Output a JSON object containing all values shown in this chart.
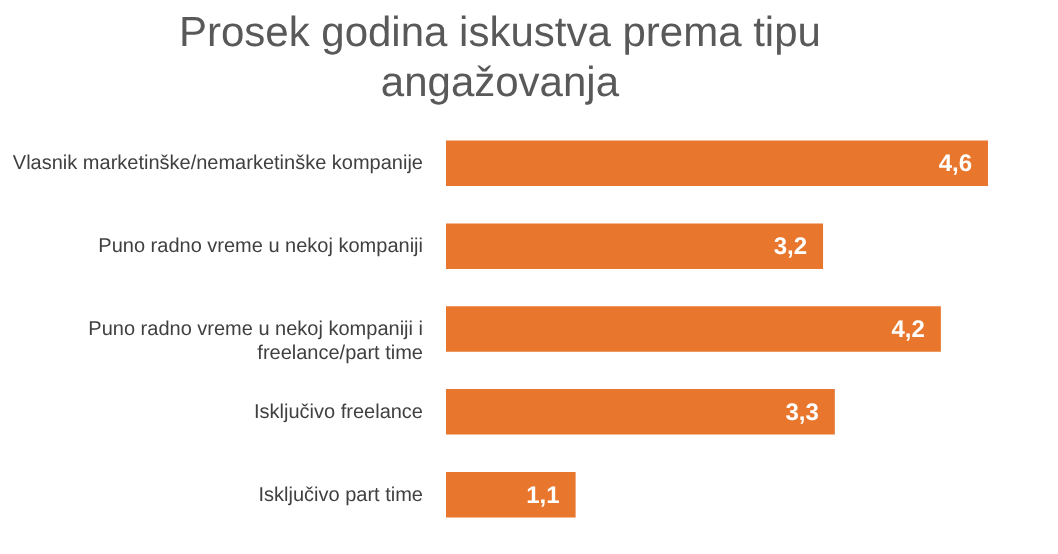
{
  "chart_data": {
    "type": "bar",
    "orientation": "horizontal",
    "title": "Prosek godina iskustva prema tipu angažovanja",
    "categories": [
      "Vlasnik marketinške/nemarketinške kompanije",
      "Puno radno vreme u nekoj  kompaniji",
      "Puno radno vreme u nekoj  kompaniji i freelance/part time",
      "Isključivo freelance",
      "Isključivo part time"
    ],
    "values": [
      4.6,
      3.2,
      4.2,
      3.3,
      1.1
    ],
    "value_labels": [
      "4,6",
      "3,2",
      "4,2",
      "3,3",
      "1,1"
    ],
    "color": "#e8762d"
  }
}
